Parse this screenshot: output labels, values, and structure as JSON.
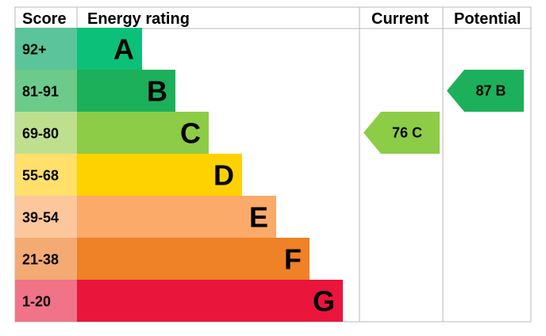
{
  "headers": {
    "score": "Score",
    "energy_rating": "Energy rating",
    "current": "Current",
    "potential": "Potential"
  },
  "chart_data": {
    "type": "bar",
    "title": "",
    "bands": [
      {
        "score": "92+",
        "letter": "A",
        "color": "#0cc07a",
        "score_bg": "#5bc49a"
      },
      {
        "score": "81-91",
        "letter": "B",
        "color": "#1cb05a",
        "score_bg": "#6ccb8a"
      },
      {
        "score": "69-80",
        "letter": "C",
        "color": "#8dcc46",
        "score_bg": "#bedf8e"
      },
      {
        "score": "55-68",
        "letter": "D",
        "color": "#fed200",
        "score_bg": "#fee06a"
      },
      {
        "score": "39-54",
        "letter": "E",
        "color": "#fbaa6a",
        "score_bg": "#fdc79c"
      },
      {
        "score": "21-38",
        "letter": "F",
        "color": "#ef8126",
        "score_bg": "#f4aa73"
      },
      {
        "score": "1-20",
        "letter": "G",
        "color": "#e9153b",
        "score_bg": "#f07388"
      }
    ],
    "current": {
      "value": 76,
      "band": "C",
      "label": "76  C",
      "color": "#8dcc46"
    },
    "potential": {
      "value": 87,
      "band": "B",
      "label": "87  B",
      "color": "#1cb05a"
    }
  }
}
